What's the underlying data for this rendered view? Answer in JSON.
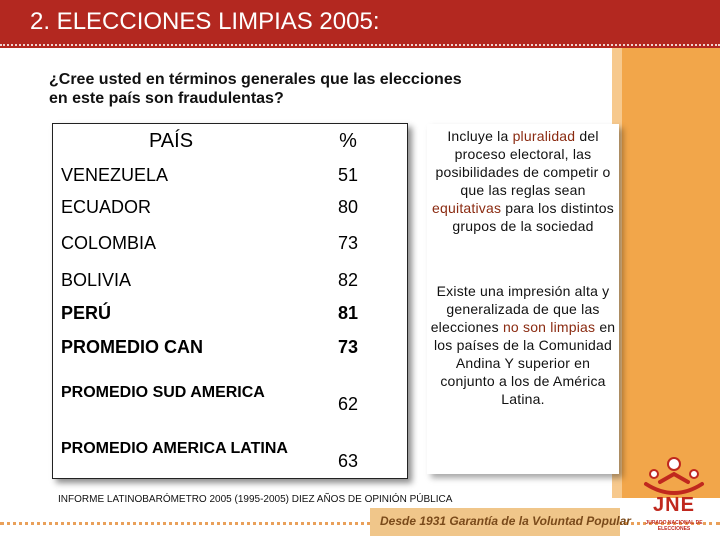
{
  "title": "2. ELECCIONES LIMPIAS  2005:",
  "question": "¿Cree usted en términos generales que las elecciones en este país son fraudulentas?",
  "table": {
    "headers": [
      "PAÍS",
      "%"
    ],
    "rows": [
      {
        "country": "VENEZUELA",
        "value": "51"
      },
      {
        "country": "ECUADOR",
        "value": "80"
      },
      {
        "country": "COLOMBIA",
        "value": "73"
      },
      {
        "country": "BOLIVIA",
        "value": "82"
      },
      {
        "country": "PERÚ",
        "value": "81"
      },
      {
        "country": "PROMEDIO CAN",
        "value": "73"
      },
      {
        "country": "PROMEDIO SUD AMERICA",
        "value": "62"
      },
      {
        "country": "PROMEDIO AMERICA LATINA",
        "value": "63"
      }
    ]
  },
  "notes": {
    "note1": {
      "p1": "Incluye la ",
      "h1": "pluralidad",
      "p2": " del proceso electoral, las posibilidades de competir o que las reglas sean ",
      "h2": "equitativas",
      "p3": " para los distintos grupos de la sociedad"
    },
    "note2": {
      "p1": "Existe una impresión alta y generalizada de que las elecciones ",
      "h1": "no son limpias",
      "p2": " en los países de la Comunidad Andina Y superior en conjunto  a los de América Latina."
    }
  },
  "source": "INFORME LATINOBARÓMETRO 2005 (1995-2005) DIEZ AÑOS DE OPINIÓN PÚBLICA",
  "footer": {
    "slogan": "Desde 1931 Garantía de la Voluntad Popular",
    "logo_text": "JNE",
    "logo_sub": "JURADO NACIONAL DE ELECCIONES"
  },
  "colors": {
    "title_bar": "#b32820",
    "orange_band": "#f2a64a",
    "highlight": "#8a2a10",
    "logo": "#c0281e"
  }
}
